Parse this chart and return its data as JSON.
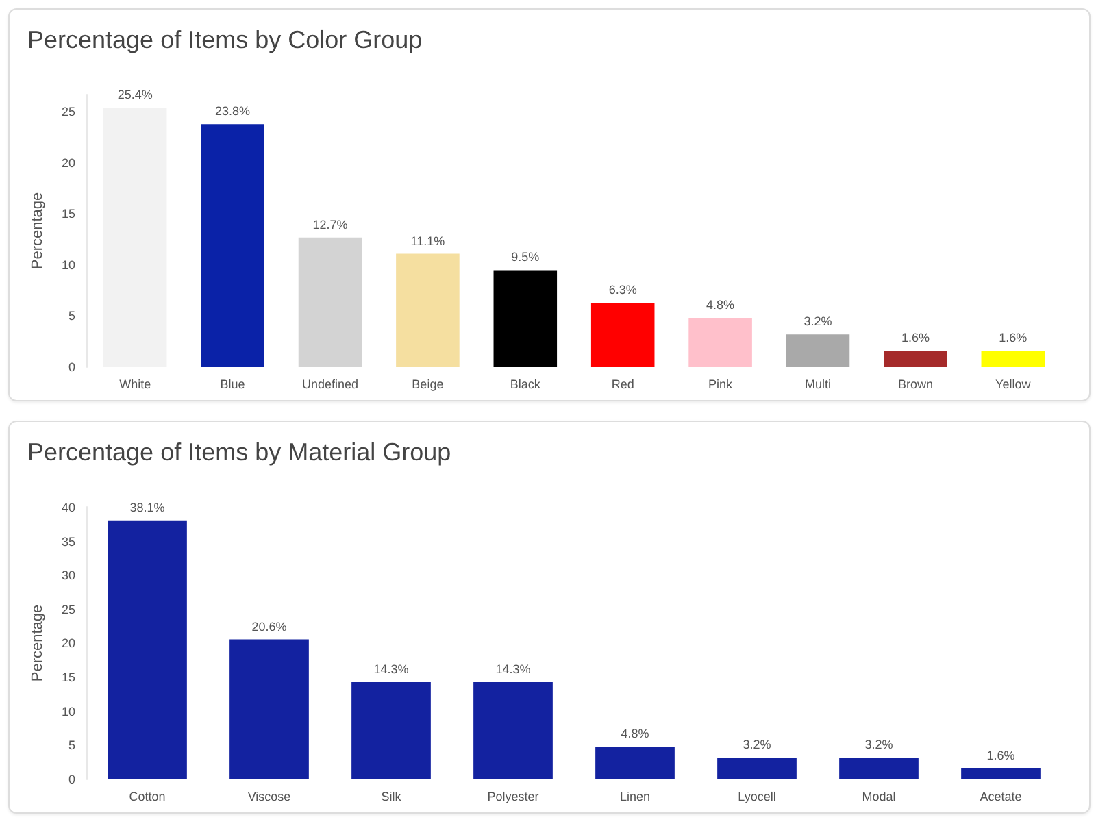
{
  "chart_data": [
    {
      "type": "bar",
      "title": "Percentage of Items by Color Group",
      "ylabel": "Percentage",
      "categories": [
        "White",
        "Blue",
        "Undefined",
        "Beige",
        "Black",
        "Red",
        "Pink",
        "Multi",
        "Brown",
        "Yellow"
      ],
      "values": [
        25.4,
        23.8,
        12.7,
        11.1,
        9.5,
        6.3,
        4.8,
        3.2,
        1.6,
        1.6
      ],
      "value_labels": [
        "25.4%",
        "23.8%",
        "12.7%",
        "11.1%",
        "9.5%",
        "6.3%",
        "4.8%",
        "3.2%",
        "1.6%",
        "1.6%"
      ],
      "colors": [
        "#f2f2f2",
        "#0a22a8",
        "#d3d3d3",
        "#f5dfa0",
        "#000000",
        "#ff0000",
        "#ffc0cb",
        "#a9a9a9",
        "#a52a2a",
        "#ffff00"
      ],
      "ylim": [
        0,
        26.7
      ],
      "yticks": [
        0,
        5,
        10,
        15,
        20,
        25
      ],
      "grid": false
    },
    {
      "type": "bar",
      "title": "Percentage of Items by Material Group",
      "ylabel": "Percentage",
      "categories": [
        "Cotton",
        "Viscose",
        "Silk",
        "Polyester",
        "Linen",
        "Lyocell",
        "Modal",
        "Acetate"
      ],
      "values": [
        38.1,
        20.6,
        14.3,
        14.3,
        4.8,
        3.2,
        3.2,
        1.6
      ],
      "value_labels": [
        "38.1%",
        "20.6%",
        "14.3%",
        "14.3%",
        "4.8%",
        "3.2%",
        "3.2%",
        "1.6%"
      ],
      "color": "#1322a0",
      "ylim": [
        0,
        40.1
      ],
      "yticks": [
        0,
        5,
        10,
        15,
        20,
        25,
        30,
        35,
        40
      ],
      "grid": false
    }
  ]
}
